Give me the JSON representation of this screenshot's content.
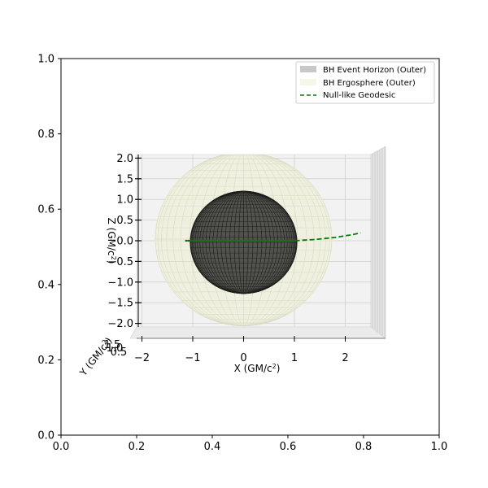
{
  "chart_data": [
    {
      "type": "line",
      "role": "outer-2d-axes",
      "xlim": [
        0,
        1
      ],
      "ylim": [
        0,
        1
      ],
      "x_ticks": [
        "0.0",
        "0.2",
        "0.4",
        "0.6",
        "0.8",
        "1.0"
      ],
      "y_ticks": [
        "0.0",
        "0.2",
        "0.4",
        "0.6",
        "0.8",
        "1.0"
      ]
    },
    {
      "type": "3d-surface",
      "role": "3d-axes",
      "xlabel": "X (GM/c²)",
      "ylabel": "Y (GM/c²)",
      "zlabel": "Z (GM/c²)",
      "xlim": [
        -2.5,
        2.5
      ],
      "zlim": [
        -2.1,
        2.1
      ],
      "x_ticks": [
        "−2",
        "−1",
        "0",
        "1",
        "2"
      ],
      "z_ticks": [
        "−2.0",
        "−1.5",
        "−1.0",
        "−0.5",
        "0.0",
        "0.5",
        "1.0",
        "1.5",
        "2.0"
      ],
      "y_ticks_overlapping": [
        "1.5",
        "1.0",
        "0.5"
      ],
      "legend_position": "upper right",
      "series": [
        {
          "name": "BH Event Horizon (Outer)",
          "kind": "sphere",
          "radius": 1.05,
          "color": "#4a4a44"
        },
        {
          "name": "BH Ergosphere (Outer)",
          "kind": "ellipsoid",
          "radius": 1.75,
          "color": "#efefd9"
        },
        {
          "name": "Null-like Geodesic",
          "kind": "line",
          "style": "dashed",
          "color": "#008000",
          "x": [
            -1.15,
            -0.6,
            0,
            0.6,
            1.0,
            1.4,
            1.8,
            2.15,
            2.3
          ],
          "z": [
            0.0,
            0.0,
            0.0,
            0.0,
            0.0,
            0.03,
            0.08,
            0.15,
            0.19
          ]
        }
      ]
    }
  ]
}
